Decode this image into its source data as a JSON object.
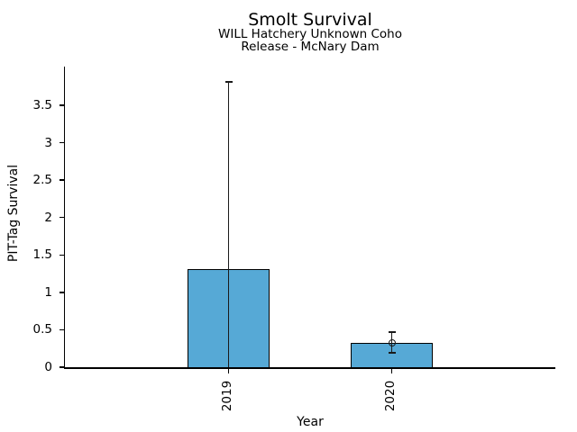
{
  "chart_data": {
    "type": "bar",
    "title": "Smolt Survival",
    "subtitle": [
      "WILL Hatchery Unknown Coho",
      "Release - McNary Dam"
    ],
    "xlabel": "Year",
    "ylabel": "PIT-Tag Survival",
    "categories": [
      "2019",
      "2020"
    ],
    "values": [
      1.31,
      0.33
    ],
    "errors": [
      {
        "low": 0.0,
        "high": 3.81,
        "show_low_cap": false,
        "show_high_cap": true,
        "marker": false
      },
      {
        "low": 0.19,
        "high": 0.47,
        "show_low_cap": true,
        "show_high_cap": true,
        "marker": true
      }
    ],
    "yticks": {
      "values": [
        0,
        0.5,
        1,
        1.5,
        2,
        2.5,
        3,
        3.5
      ],
      "labels": [
        "0",
        "0.5",
        "1",
        "1.5",
        "2",
        "2.5",
        "3",
        "3.5"
      ]
    },
    "ylim": [
      0,
      4.0
    ],
    "grid": false,
    "legend": null,
    "bar_color": "#56a9d6",
    "bar_edge_color": "#000000",
    "error_color": "#1a1a1a",
    "text_color": "#000000"
  }
}
